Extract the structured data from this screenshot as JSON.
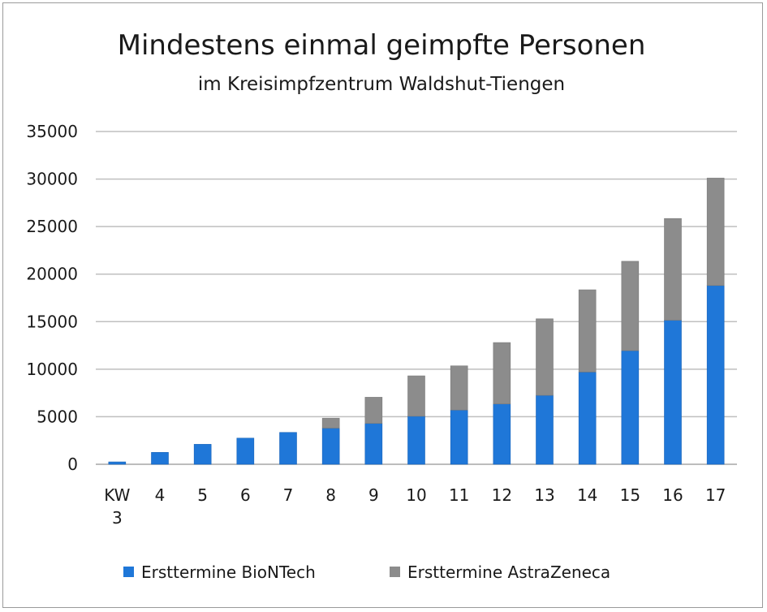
{
  "chart_data": {
    "type": "bar",
    "stacked": true,
    "title": "Mindestens einmal geimpfte Personen",
    "subtitle": "im Kreisimpfzentrum Waldshut-Tiengen",
    "categories": [
      "KW 3",
      "4",
      "5",
      "6",
      "7",
      "8",
      "9",
      "10",
      "11",
      "12",
      "13",
      "14",
      "15",
      "16",
      "17"
    ],
    "series": [
      {
        "name": "Ersttermine BioNTech",
        "color": "#1f77d8",
        "values": [
          250,
          1250,
          2100,
          2750,
          3350,
          3800,
          4300,
          5050,
          5700,
          6350,
          7250,
          9700,
          11950,
          15150,
          18800
        ]
      },
      {
        "name": "Ersttermine AstraZeneca",
        "color": "#8c8c8c",
        "values": [
          0,
          0,
          0,
          0,
          0,
          1050,
          2750,
          4250,
          4650,
          6450,
          8050,
          8650,
          9400,
          10700,
          11300
        ]
      }
    ],
    "ylim": [
      0,
      35000
    ],
    "yticks": [
      "0",
      "5000",
      "10000",
      "15000",
      "20000",
      "25000",
      "30000",
      "35000"
    ],
    "grid": true,
    "legend": "bottom"
  }
}
